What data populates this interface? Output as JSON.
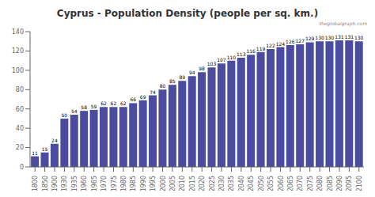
{
  "chart_data": {
    "type": "bar",
    "title": "Cyprus - Population Density (people per sq. km.)",
    "categories": [
      "1800",
      "1850",
      "1900",
      "1930",
      "1935",
      "1960",
      "1965",
      "1970",
      "1975",
      "1980",
      "1985",
      "1990",
      "1995",
      "2000",
      "2005",
      "2010",
      "2015",
      "2020",
      "2025",
      "2030",
      "2035",
      "2040",
      "2045",
      "2050",
      "2055",
      "2060",
      "2065",
      "2070",
      "2075",
      "2080",
      "2085",
      "2090",
      "2095",
      "2100"
    ],
    "values": [
      11,
      15,
      24,
      50,
      54,
      58,
      59,
      62,
      62,
      62,
      66,
      69,
      74,
      80,
      85,
      89,
      94,
      98,
      103,
      107,
      110,
      113,
      116,
      119,
      122,
      124,
      126,
      127,
      129,
      130,
      130,
      131,
      131,
      130
    ],
    "color": "#4b4b9f",
    "ylim": [
      0,
      140
    ],
    "yticks": [
      0,
      20,
      40,
      60,
      80,
      100,
      120,
      140
    ],
    "grid": false,
    "data_labels": true,
    "annotations": [
      "theglobalgraph.com"
    ]
  }
}
